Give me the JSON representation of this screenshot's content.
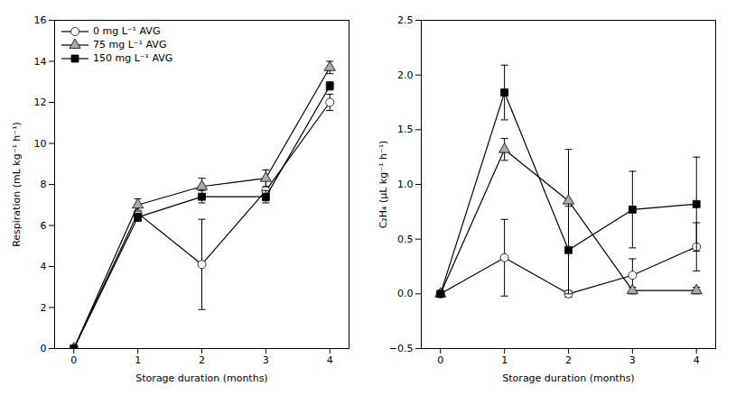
{
  "chart_data": [
    {
      "type": "line",
      "xlabel": "Storage duration (months)",
      "ylabel": "Respiration (mL kg⁻¹ h⁻¹)",
      "x": [
        0,
        1,
        2,
        3,
        4
      ],
      "xlim": [
        -0.3,
        4.3
      ],
      "xticks": [
        0,
        1,
        2,
        3,
        4
      ],
      "ylim": [
        0,
        16
      ],
      "yticks": [
        0,
        2,
        4,
        6,
        8,
        10,
        12,
        14,
        16
      ],
      "color": "#000000",
      "grid": false,
      "legend": "upper left",
      "series": [
        {
          "name": "0 mg L⁻¹ AVG",
          "color": "#ffffff",
          "marker": "circle",
          "values": [
            0.0,
            6.6,
            4.1,
            7.7,
            12.0
          ],
          "errors": [
            0.0,
            0.3,
            2.2,
            0.5,
            0.4
          ]
        },
        {
          "name": "75 mg L⁻¹ AVG",
          "color": "#aaaaaa",
          "marker": "triangle",
          "values": [
            0.0,
            7.0,
            7.9,
            8.3,
            13.7
          ],
          "errors": [
            0.0,
            0.3,
            0.4,
            0.4,
            0.3
          ]
        },
        {
          "name": "150 mg L⁻¹ AVG",
          "color": "#000000",
          "marker": "square",
          "values": [
            0.0,
            6.4,
            7.4,
            7.4,
            12.8
          ],
          "errors": [
            0.0,
            0.2,
            0.3,
            0.3,
            0.2
          ]
        }
      ]
    },
    {
      "type": "line",
      "xlabel": "Storage duration (months)",
      "ylabel": "C₂H₄ (μL kg⁻¹ h⁻¹)",
      "x": [
        0,
        1,
        2,
        3,
        4
      ],
      "xlim": [
        -0.3,
        4.3
      ],
      "xticks": [
        0,
        1,
        2,
        3,
        4
      ],
      "ylim": [
        -0.5,
        2.5
      ],
      "yticks": [
        {
          "value": -0.5,
          "label": "−0.5"
        },
        {
          "value": 0.0,
          "label": "0.0"
        },
        {
          "value": 0.5,
          "label": "0.5"
        },
        {
          "value": 1.0,
          "label": "1.0"
        },
        {
          "value": 1.5,
          "label": "1.5"
        },
        {
          "value": 2.0,
          "label": "2.0"
        },
        {
          "value": 2.5,
          "label": "2.5"
        }
      ],
      "color": "#000000",
      "grid": false,
      "series": [
        {
          "name": "0 mg L⁻¹ AVG",
          "color": "#ffffff",
          "marker": "circle",
          "values": [
            0.0,
            0.33,
            0.0,
            0.17,
            0.43
          ],
          "errors": [
            0.0,
            0.35,
            0.03,
            0.15,
            0.22
          ]
        },
        {
          "name": "75 mg L⁻¹ AVG",
          "color": "#aaaaaa",
          "marker": "triangle",
          "values": [
            0.0,
            1.32,
            0.85,
            0.03,
            0.03
          ],
          "errors": [
            0.0,
            0.1,
            0.47,
            0.03,
            0.03
          ]
        },
        {
          "name": "150 mg L⁻¹ AVG",
          "color": "#000000",
          "marker": "square",
          "values": [
            0.0,
            1.84,
            0.4,
            0.77,
            0.82
          ],
          "errors": [
            0.0,
            0.25,
            0.4,
            0.35,
            0.43
          ]
        }
      ]
    }
  ]
}
